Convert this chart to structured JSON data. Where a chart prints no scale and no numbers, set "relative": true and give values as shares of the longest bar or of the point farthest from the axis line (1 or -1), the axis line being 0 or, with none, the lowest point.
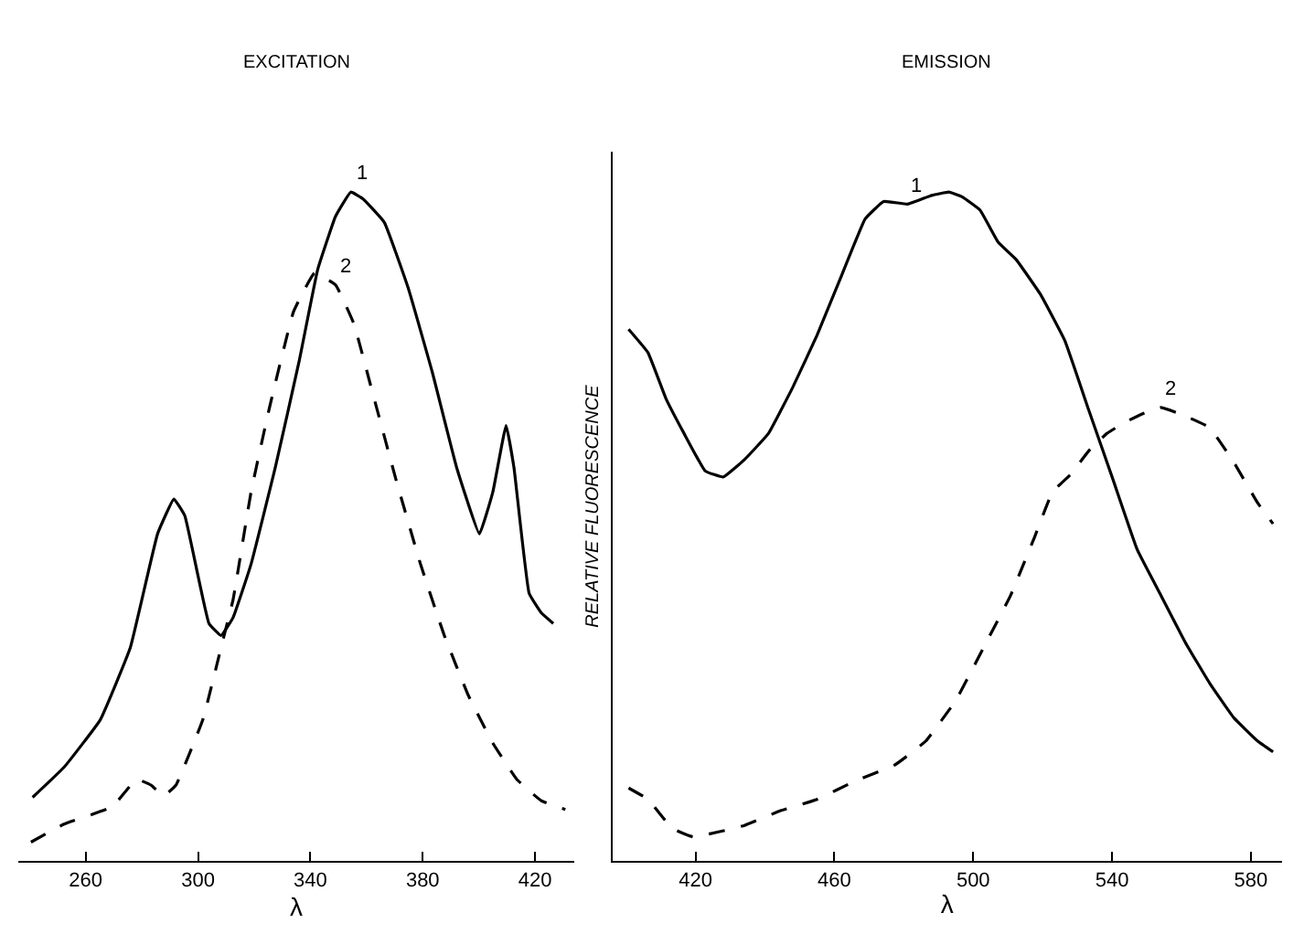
{
  "chart_data": [
    {
      "type": "line",
      "title": "EXCITATION",
      "xlabel": "λ",
      "relative": true,
      "xlim": [
        236,
        434
      ],
      "xticks": [
        260,
        300,
        340,
        380,
        420
      ],
      "marker": "none",
      "series": [
        {
          "color": "#000000",
          "line_style": "solid",
          "x": [
            241.1,
            252.3,
            265.2,
            275.9,
            285.6,
            291.4,
            295.3,
            303.9,
            308.2,
            312.5,
            318.9,
            327.5,
            336.1,
            342.6,
            349.0,
            354.4,
            358.7,
            366.3,
            374.8,
            383.4,
            392.1,
            400.2,
            405.0,
            409.7,
            412.5,
            417.9,
            422.2,
            426.5
          ],
          "values": [
            0.095,
            0.14,
            0.211,
            0.319,
            0.489,
            0.541,
            0.516,
            0.355,
            0.337,
            0.364,
            0.444,
            0.588,
            0.749,
            0.884,
            0.964,
            1.0,
            0.99,
            0.955,
            0.857,
            0.731,
            0.588,
            0.489,
            0.552,
            0.651,
            0.588,
            0.4,
            0.371,
            0.355
          ]
        },
        {
          "color": "#000000",
          "line_style": "dashed",
          "x": [
            240.5,
            252.3,
            269.5,
            278.1,
            283.4,
            287.7,
            292.1,
            301.7,
            308.2,
            312.5,
            318.9,
            325.4,
            334.0,
            341.5,
            349.0,
            355.5,
            361.9,
            370.5,
            379.2,
            387.7,
            396.3,
            405.0,
            413.5,
            422.2,
            430.8
          ],
          "values": [
            0.028,
            0.055,
            0.081,
            0.122,
            0.113,
            0.097,
            0.113,
            0.211,
            0.319,
            0.391,
            0.552,
            0.677,
            0.821,
            0.879,
            0.861,
            0.803,
            0.704,
            0.57,
            0.444,
            0.337,
            0.247,
            0.176,
            0.122,
            0.09,
            0.077
          ]
        }
      ],
      "annotations": [
        {
          "text": "1",
          "x": 355,
          "y": 1.0
        },
        {
          "text": "2",
          "x": 349,
          "y": 0.861
        }
      ]
    },
    {
      "type": "line",
      "title": "EMISSION",
      "xlabel": "λ",
      "ylabel": "RELATIVE FLUORESCENCE",
      "relative": true,
      "xlim": [
        396,
        589
      ],
      "xticks": [
        420,
        460,
        500,
        540,
        580
      ],
      "marker": "none",
      "series": [
        {
          "color": "#000000",
          "line_style": "solid",
          "x": [
            400.7,
            406.3,
            411.5,
            416.7,
            422.8,
            428.0,
            434.1,
            441.0,
            448.0,
            455.0,
            461.9,
            468.9,
            474.2,
            481.1,
            488.0,
            493.0,
            496.8,
            502.0,
            507.2,
            512.4,
            519.4,
            526.4,
            533.3,
            540.3,
            547.3,
            554.2,
            561.2,
            568.1,
            575.1,
            582.0,
            586.4
          ],
          "values": [
            0.795,
            0.76,
            0.691,
            0.639,
            0.583,
            0.574,
            0.6,
            0.639,
            0.708,
            0.786,
            0.873,
            0.96,
            0.986,
            0.982,
            0.995,
            1.0,
            0.993,
            0.973,
            0.925,
            0.899,
            0.847,
            0.778,
            0.674,
            0.57,
            0.465,
            0.396,
            0.326,
            0.266,
            0.214,
            0.179,
            0.163
          ]
        },
        {
          "color": "#000000",
          "line_style": "dashed",
          "x": [
            400.7,
            406.3,
            413.2,
            419.3,
            427.2,
            434.1,
            444.5,
            455.0,
            465.4,
            477.6,
            486.3,
            495.0,
            503.7,
            510.7,
            517.6,
            522.9,
            528.1,
            533.3,
            538.5,
            543.8,
            549.0,
            554.2,
            561.2,
            568.1,
            575.1,
            582.0,
            586.4
          ],
          "values": [
            0.109,
            0.092,
            0.049,
            0.036,
            0.044,
            0.053,
            0.075,
            0.092,
            0.118,
            0.144,
            0.179,
            0.24,
            0.326,
            0.396,
            0.483,
            0.552,
            0.578,
            0.613,
            0.639,
            0.656,
            0.669,
            0.678,
            0.665,
            0.648,
            0.596,
            0.535,
            0.504
          ]
        }
      ],
      "annotations": [
        {
          "text": "1",
          "x": 481.1,
          "y": 0.982
        },
        {
          "text": "2",
          "x": 554,
          "y": 0.678
        }
      ]
    }
  ]
}
